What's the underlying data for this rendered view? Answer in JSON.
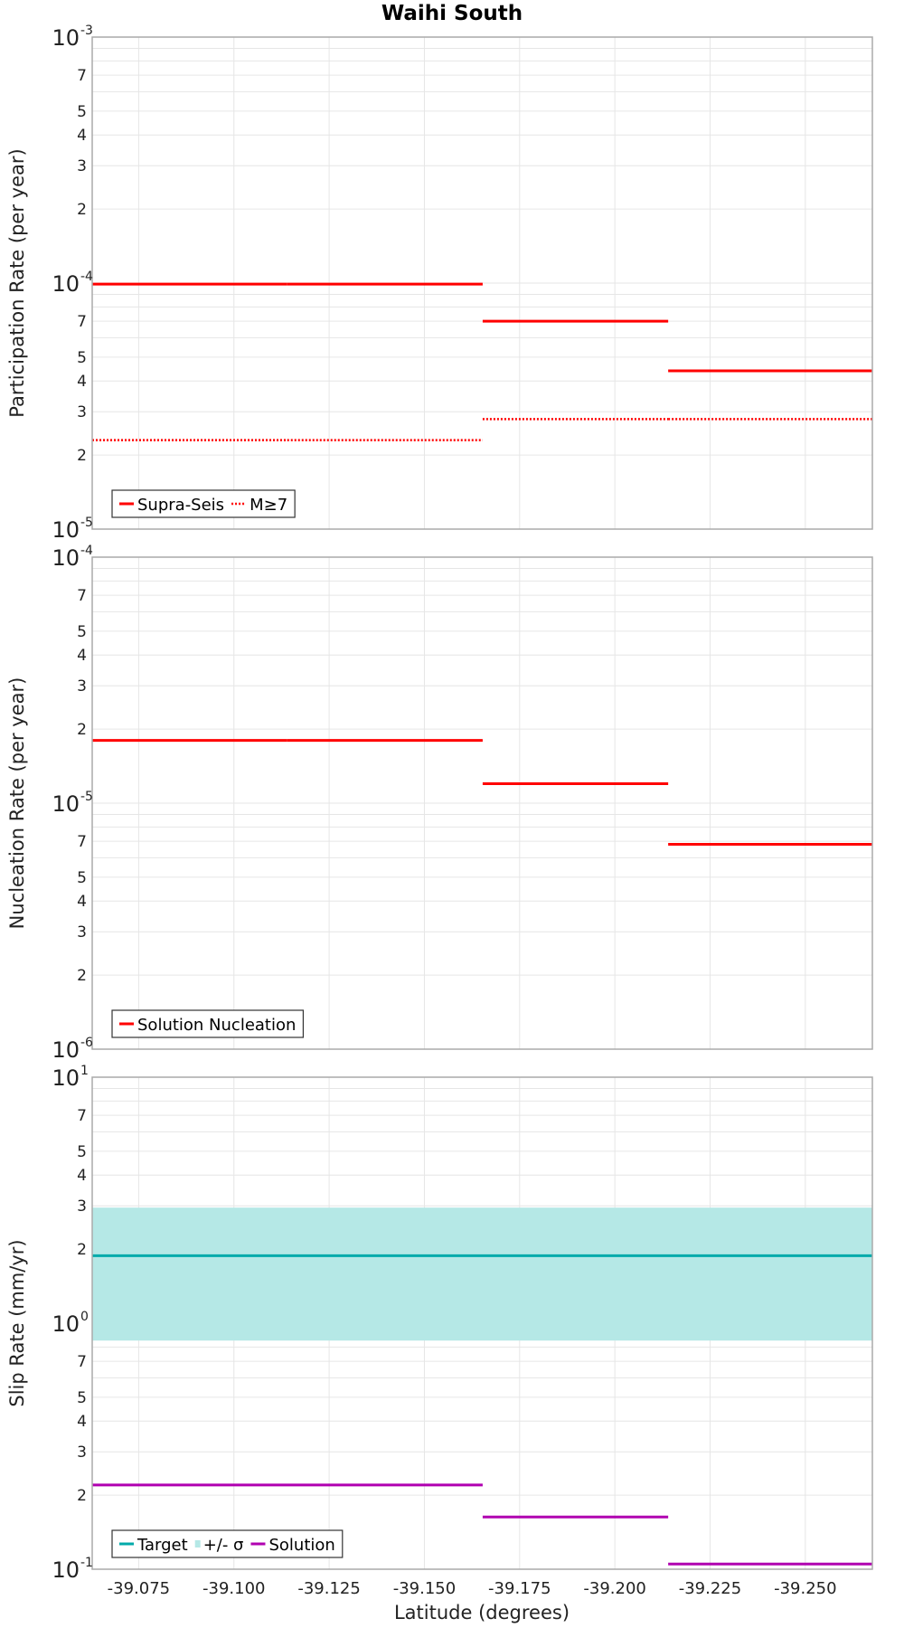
{
  "chart_data": {
    "title": "Waihi South",
    "xlabel": "Latitude (degrees)",
    "xlim": [
      -39.0628,
      -39.2676
    ],
    "xticks": [
      "-39.075",
      "-39.100",
      "-39.125",
      "-39.150",
      "-39.175",
      "-39.200",
      "-39.225",
      "-39.250"
    ],
    "xtick_values": [
      -39.075,
      -39.1,
      -39.125,
      -39.15,
      -39.175,
      -39.2,
      -39.225,
      -39.25
    ],
    "panels": [
      {
        "type": "line",
        "id": "participation",
        "ylabel": "Participation Rate (per year)",
        "yscale": "log",
        "ylim": [
          1e-05,
          0.001
        ],
        "decade_labels": [
          {
            "base": "10",
            "exp": "-3"
          },
          {
            "base": "10",
            "exp": "-4"
          },
          {
            "base": "10",
            "exp": "-5"
          }
        ],
        "minor_labels": [
          "7",
          "5",
          "4",
          "3",
          "2",
          "7",
          "5",
          "4",
          "3",
          "2"
        ],
        "series": [
          {
            "name": "Supra-Seis",
            "color": "#ff0000",
            "style": "solid",
            "segments": [
              [
                -39.0628,
                -39.114,
                9.9e-05
              ],
              [
                -39.114,
                -39.1653,
                9.9e-05
              ],
              [
                -39.1653,
                -39.214,
                7e-05
              ],
              [
                -39.214,
                -39.2676,
                4.4e-05
              ]
            ]
          },
          {
            "name": "M≥7",
            "color": "#ff0000",
            "style": "dotted",
            "segments": [
              [
                -39.0628,
                -39.114,
                2.3e-05
              ],
              [
                -39.114,
                -39.1653,
                2.3e-05
              ],
              [
                -39.1653,
                -39.214,
                2.8e-05
              ],
              [
                -39.214,
                -39.2676,
                2.8e-05
              ]
            ]
          }
        ],
        "legend": [
          {
            "label": "Supra-Seis",
            "kind": "solid",
            "color": "#ff0000"
          },
          {
            "label": "M≥7",
            "kind": "dotted",
            "color": "#ff0000"
          }
        ]
      },
      {
        "type": "line",
        "id": "nucleation",
        "ylabel": "Nucleation Rate (per year)",
        "yscale": "log",
        "ylim": [
          1e-06,
          0.0001
        ],
        "decade_labels": [
          {
            "base": "10",
            "exp": "-4"
          },
          {
            "base": "10",
            "exp": "-5"
          },
          {
            "base": "10",
            "exp": "-6"
          }
        ],
        "minor_labels": [
          "7",
          "5",
          "4",
          "3",
          "2",
          "7",
          "5",
          "4",
          "3",
          "2"
        ],
        "series": [
          {
            "name": "Solution Nucleation",
            "color": "#ff0000",
            "style": "solid",
            "segments": [
              [
                -39.0628,
                -39.114,
                1.8e-05
              ],
              [
                -39.114,
                -39.1653,
                1.8e-05
              ],
              [
                -39.1653,
                -39.214,
                1.2e-05
              ],
              [
                -39.214,
                -39.2676,
                6.8e-06
              ]
            ]
          }
        ],
        "legend": [
          {
            "label": "Solution Nucleation",
            "kind": "solid",
            "color": "#ff0000"
          }
        ]
      },
      {
        "type": "line",
        "id": "sliprate",
        "ylabel": "Slip Rate (mm/yr)",
        "yscale": "log",
        "ylim": [
          0.1,
          10
        ],
        "decade_labels": [
          {
            "base": "10",
            "exp": "1"
          },
          {
            "base": "10",
            "exp": "0"
          },
          {
            "base": "10",
            "exp": "-1"
          }
        ],
        "minor_labels": [
          "7",
          "5",
          "4",
          "3",
          "2",
          "7",
          "5",
          "4",
          "3",
          "2"
        ],
        "band": {
          "name": "+/- σ",
          "color": "#b5e8e6",
          "lower": 0.85,
          "upper": 2.95
        },
        "series": [
          {
            "name": "Target",
            "color": "#00aaaa",
            "style": "solid",
            "segments": [
              [
                -39.0628,
                -39.2676,
                1.88
              ]
            ]
          },
          {
            "name": "Solution",
            "color": "#b000b0",
            "style": "solid",
            "segments": [
              [
                -39.0628,
                -39.1653,
                0.22
              ],
              [
                -39.1653,
                -39.214,
                0.163
              ],
              [
                -39.214,
                -39.2676,
                0.105
              ]
            ]
          }
        ],
        "legend": [
          {
            "label": "Target",
            "kind": "solid",
            "color": "#00aaaa"
          },
          {
            "label": "+/- σ",
            "kind": "band",
            "color": "#b5e8e6"
          },
          {
            "label": "Solution",
            "kind": "solid",
            "color": "#b000b0"
          }
        ]
      }
    ]
  }
}
